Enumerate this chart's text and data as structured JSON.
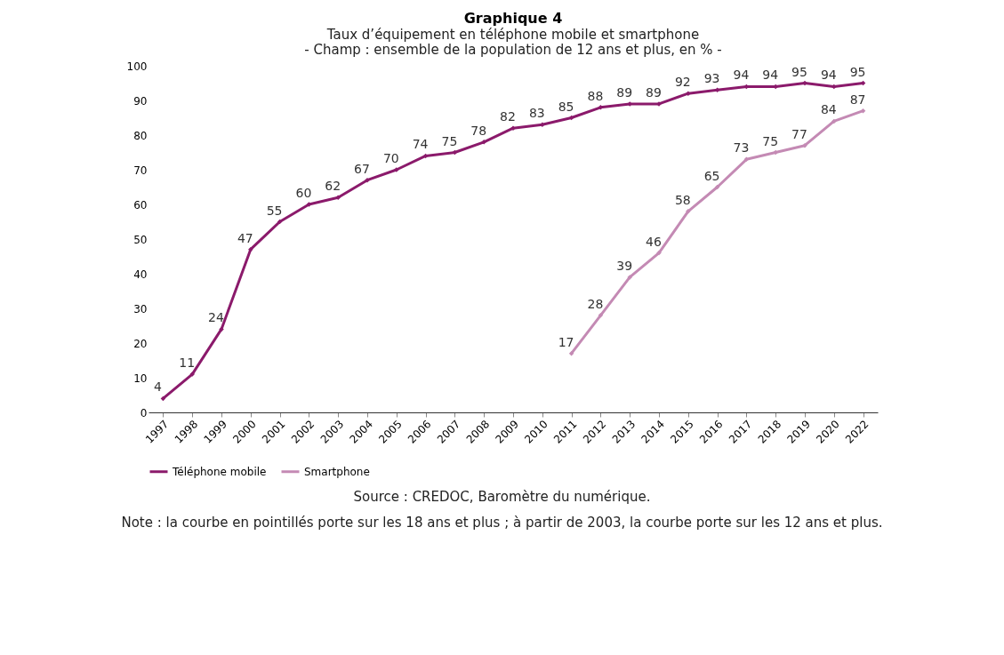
{
  "chart_data": {
    "type": "line",
    "title": "Graphique 4",
    "subtitle": "Taux d’équipement en téléphone mobile et smartphone",
    "annotations": [
      "- Champ : ensemble de la population de 12 ans et plus, en % -",
      "Source : CREDOC, Baromètre du numérique.",
      "Note : la courbe en pointillés porte sur les 18 ans et plus ; à partir de 2003, la courbe porte sur les 12 ans et plus."
    ],
    "categories": [
      "1997",
      "1998",
      "1999",
      "2000",
      "2001",
      "2002",
      "2003",
      "2004",
      "2005",
      "2006",
      "2007",
      "2008",
      "2009",
      "2010",
      "2011",
      "2012",
      "2013",
      "2014",
      "2015",
      "2016",
      "2017",
      "2018",
      "2019",
      "2020",
      "2022"
    ],
    "series": [
      {
        "name": "Téléphone mobile",
        "color": "#8b1a6b",
        "values": [
          4,
          11,
          24,
          47,
          55,
          60,
          62,
          67,
          70,
          74,
          75,
          78,
          82,
          83,
          85,
          88,
          89,
          89,
          92,
          93,
          94,
          94,
          95,
          94,
          95
        ]
      },
      {
        "name": "Smartphone",
        "color": "#c48ab4",
        "values": [
          null,
          null,
          null,
          null,
          null,
          null,
          null,
          null,
          null,
          null,
          null,
          null,
          null,
          null,
          17,
          28,
          39,
          46,
          58,
          65,
          73,
          75,
          77,
          84,
          87
        ]
      }
    ],
    "ylim": [
      0,
      100
    ],
    "yticks": [
      0,
      10,
      20,
      30,
      40,
      50,
      60,
      70,
      80,
      90,
      100
    ],
    "grid": false,
    "legend": "bottom",
    "marker": "diamond",
    "line_style": "solid",
    "data_labels": true
  }
}
